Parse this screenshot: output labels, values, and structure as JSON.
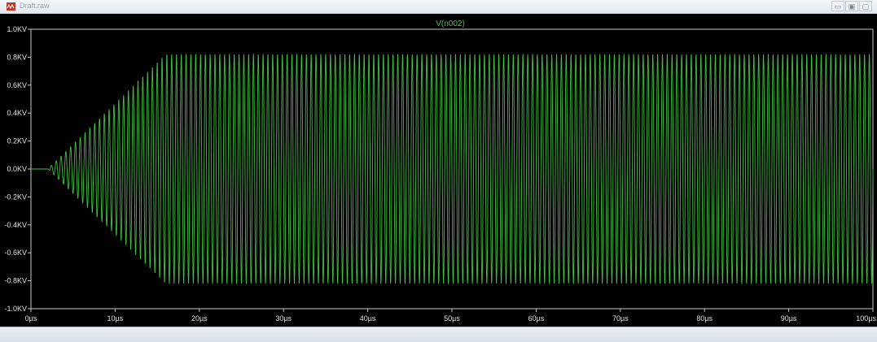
{
  "window": {
    "title": "Draft.raw",
    "buttons": {
      "minimize": "▭",
      "restore": "▣",
      "close": "▢"
    }
  },
  "colors": {
    "background": "#000000",
    "trace": "#3fbf3f",
    "axis": "#c8c8c8",
    "tick_text": "#e0e0e0"
  },
  "chart_data": {
    "type": "line",
    "series": [
      {
        "name": "V(n002)"
      }
    ],
    "xlabel": "",
    "ylabel": "",
    "xlim": [
      0,
      100
    ],
    "ylim": [
      -1.0,
      1.0
    ],
    "x_unit": "µs",
    "y_unit": "KV",
    "x_ticks": [
      0,
      10,
      20,
      30,
      40,
      50,
      60,
      70,
      80,
      90,
      100
    ],
    "x_tick_labels": [
      "0µs",
      "10µs",
      "20µs",
      "30µs",
      "40µs",
      "50µs",
      "60µs",
      "70µs",
      "80µs",
      "90µs",
      "100µs"
    ],
    "y_ticks": [
      1.0,
      0.8,
      0.6,
      0.4,
      0.2,
      0.0,
      -0.2,
      -0.4,
      -0.6,
      -0.8,
      -1.0
    ],
    "y_tick_labels": [
      "1.0KV",
      "0.8KV",
      "0.6KV",
      "0.4KV",
      "0.2KV",
      "0.0KV",
      "-0.2KV",
      "-0.4KV",
      "-0.6KV",
      "-0.8KV",
      "-1.0KV"
    ],
    "waveform": {
      "shape": "sinusoid with linearly growing envelope, then constant amplitude",
      "envelope_points": [
        [
          0,
          0.0
        ],
        [
          2,
          0.0
        ],
        [
          16,
          0.82
        ],
        [
          100,
          0.82
        ]
      ],
      "approx_cycles": 175
    },
    "grid": false,
    "legend": "top-center"
  }
}
